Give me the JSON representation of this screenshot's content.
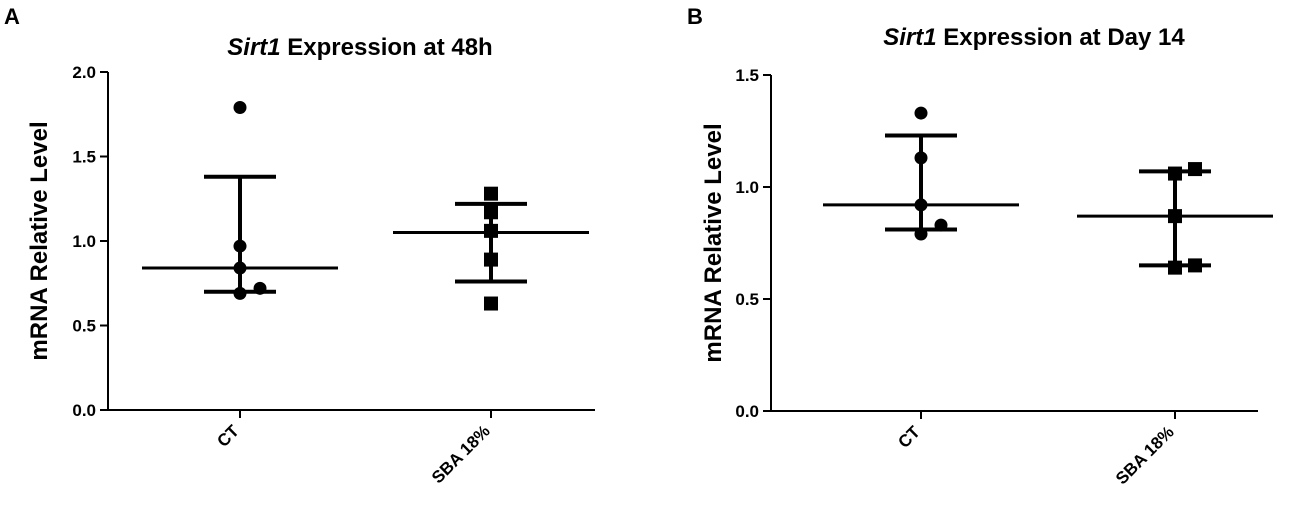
{
  "chart_data": [
    {
      "panel_label": "A",
      "type": "scatter",
      "title_italic": "Sirt1",
      "title_rest": " Expression at 48h",
      "xlabel": "",
      "ylabel": "mRNA Relative Level",
      "ylim": [
        0,
        2.0
      ],
      "yticks": [
        "0.0",
        "0.5",
        "1.0",
        "1.5",
        "2.0"
      ],
      "categories": [
        "CT",
        "SBA 18%"
      ],
      "groups": [
        {
          "category": "CT",
          "marker": "circle",
          "mean": 0.84,
          "sd_low": 0.7,
          "sd_high": 1.38,
          "points": [
            1.79,
            0.97,
            0.84,
            0.69,
            0.72
          ]
        },
        {
          "category": "SBA 18%",
          "marker": "square",
          "mean": 1.05,
          "sd_low": 0.76,
          "sd_high": 1.22,
          "points": [
            1.28,
            1.17,
            1.06,
            0.89,
            0.63
          ]
        }
      ]
    },
    {
      "panel_label": "B",
      "type": "scatter",
      "title_italic": "Sirt1",
      "title_rest": " Expression at Day 14",
      "xlabel": "",
      "ylabel": "mRNA Relative Level",
      "ylim": [
        0,
        1.5
      ],
      "yticks": [
        "0.0",
        "0.5",
        "1.0",
        "1.5"
      ],
      "categories": [
        "CT",
        "SBA 18%"
      ],
      "groups": [
        {
          "category": "CT",
          "marker": "circle",
          "mean": 0.92,
          "sd_low": 0.81,
          "sd_high": 1.23,
          "points": [
            1.33,
            1.13,
            0.92,
            0.79,
            0.83
          ]
        },
        {
          "category": "SBA 18%",
          "marker": "square",
          "mean": 0.87,
          "sd_low": 0.65,
          "sd_high": 1.07,
          "points": [
            1.06,
            1.08,
            0.87,
            0.64,
            0.65
          ]
        }
      ]
    }
  ]
}
